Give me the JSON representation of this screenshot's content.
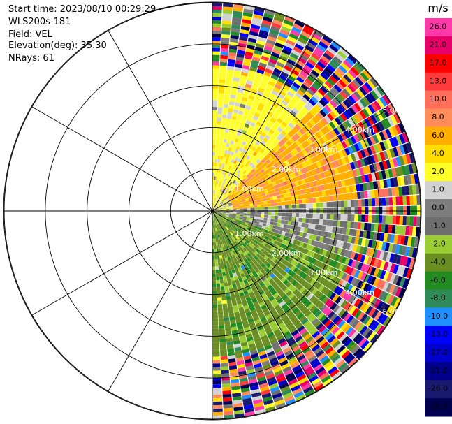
{
  "header": {
    "start_time": "Start time: 2023/08/10 00:29:29",
    "instrument": "WLS200s-181",
    "field": "Field: VEL",
    "elevation": "Elevation(deg): 35.30",
    "nrays": "NRays: 61"
  },
  "chart_data": {
    "type": "heatmap",
    "projection": "polar-ppi",
    "sector": "east half (azimuth 0 to 180 deg)",
    "range_rings_km": [
      1.0,
      2.0,
      3.0,
      4.0,
      5.0
    ],
    "ring_labels": [
      "1.00km",
      "2.00km",
      "3.00km",
      "4.00km",
      "5.00km"
    ],
    "grid_spokes_deg": [
      0,
      30,
      60,
      90,
      120,
      150,
      180,
      210,
      240,
      270,
      300,
      330
    ],
    "colorbar": {
      "unit": "m/s",
      "ticks": [
        "26.0",
        "21.0",
        "17.0",
        "13.0",
        "10.0",
        "8.0",
        "6.0",
        "4.0",
        "2.0",
        "1.0",
        "0.0",
        "-1.0",
        "-2.0",
        "-4.0",
        "-6.0",
        "-8.0",
        "-10.0",
        "-13.0",
        "-17.0",
        "-21.0",
        "-26.0",
        "-30.0"
      ],
      "colors": [
        "#ff3aa8",
        "#e8006a",
        "#ff0000",
        "#ff3a3a",
        "#ff6f5a",
        "#ff8c5a",
        "#ffae00",
        "#ffdd00",
        "#ffff28",
        "#d2d2d2",
        "#7d7d7d",
        "#6e6e6e",
        "#9acd32",
        "#6b8e23",
        "#228b22",
        "#2e8b57",
        "#1e90ff",
        "#0000ff",
        "#0000cd",
        "#00008b",
        "#191970",
        "#000050"
      ]
    },
    "velocity_regions": [
      {
        "azimuth_range_deg": [
          0,
          45
        ],
        "range_km": [
          0,
          3.5
        ],
        "typical_velocity_ms": 3.0
      },
      {
        "azimuth_range_deg": [
          45,
          85
        ],
        "range_km": [
          0.5,
          4.0
        ],
        "typical_velocity_ms": 7.0
      },
      {
        "azimuth_range_deg": [
          85,
          110
        ],
        "range_km": [
          0,
          4.0
        ],
        "typical_velocity_ms": 0.0
      },
      {
        "azimuth_range_deg": [
          110,
          180
        ],
        "range_km": [
          0,
          4.5
        ],
        "typical_velocity_ms": -3.0
      }
    ],
    "noisy_outer_range_km": [
      3.5,
      5.4
    ],
    "noisy_near_north_range_km": [
      4.3,
      5.4
    ],
    "nrays": 61
  }
}
